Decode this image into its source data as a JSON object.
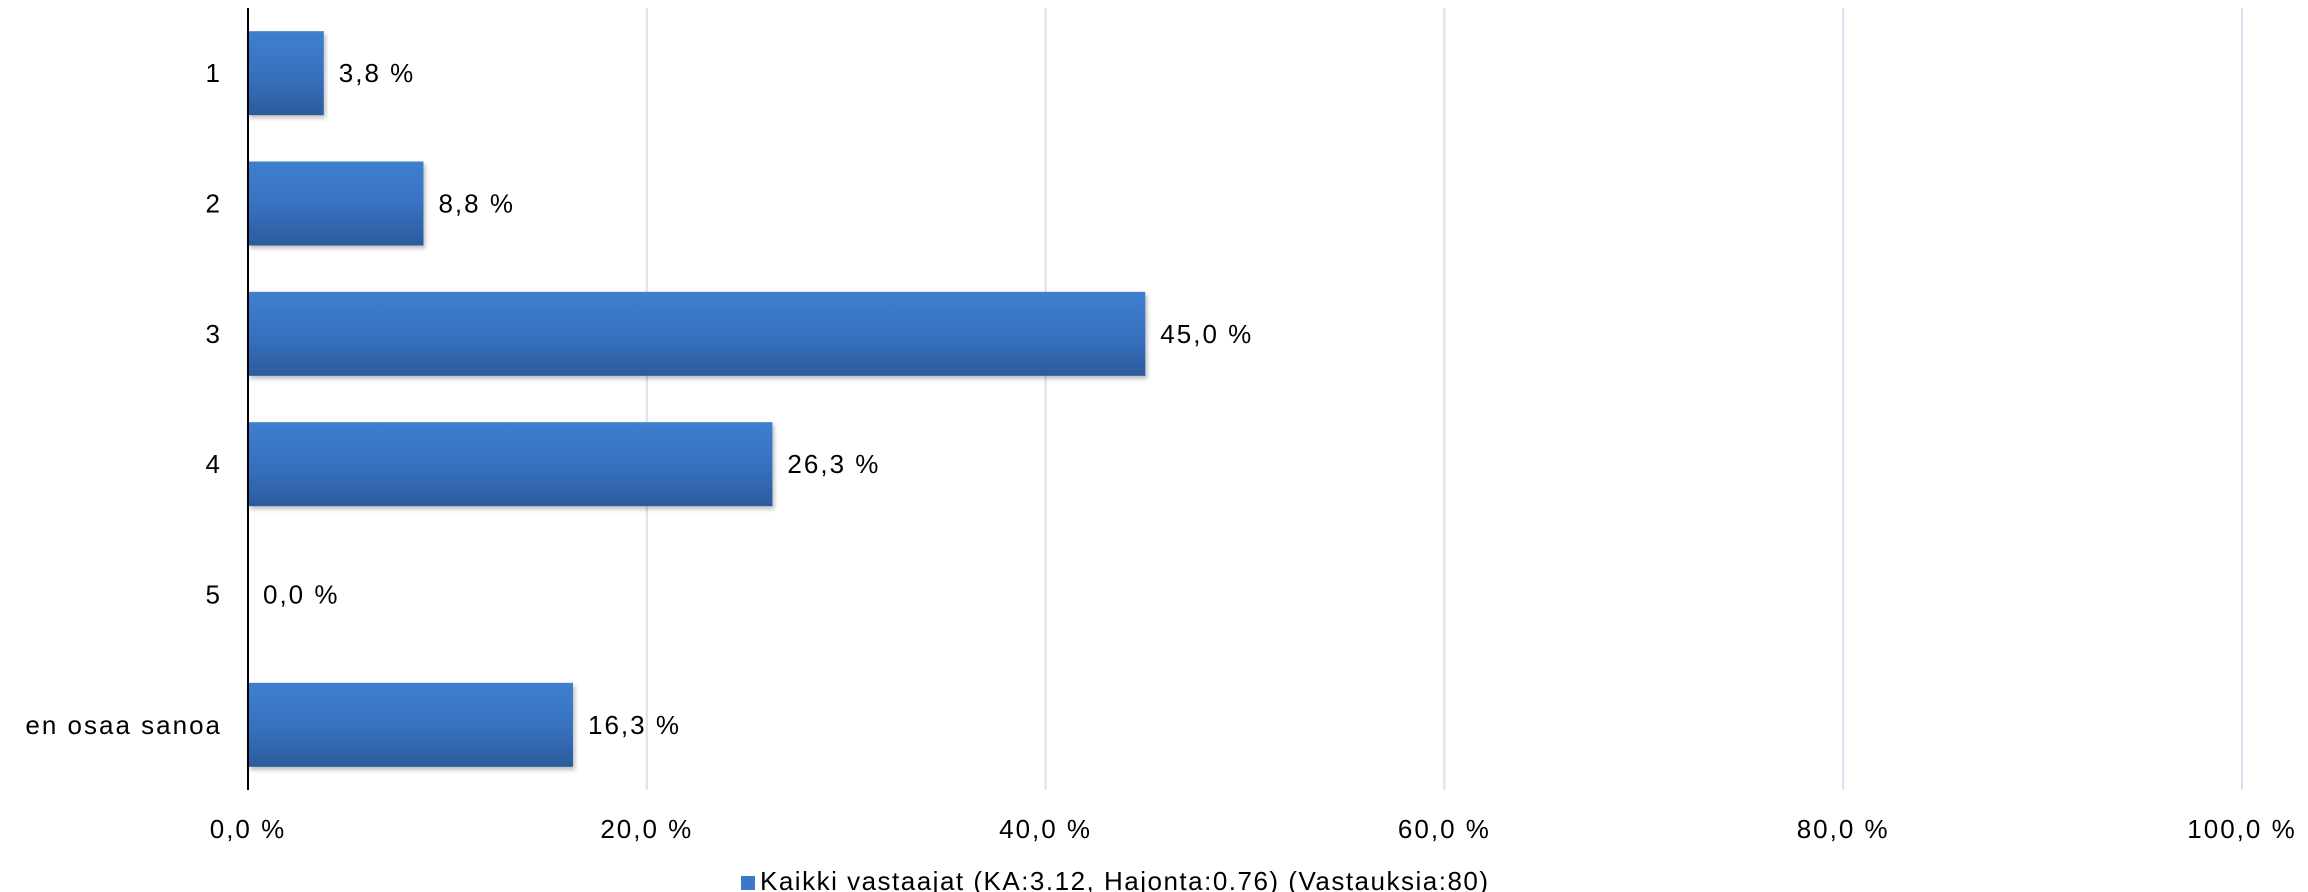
{
  "chart_data": {
    "type": "bar",
    "orientation": "horizontal",
    "categories": [
      "1",
      "2",
      "3",
      "4",
      "5",
      "en osaa sanoa"
    ],
    "series": [
      {
        "name": "Kaikki vastaajat (KA:3.12, Hajonta:0.76) (Vastauksia:80)",
        "values": [
          3.8,
          8.8,
          45.0,
          26.3,
          0.0,
          16.3
        ],
        "value_labels": [
          "3,8 %",
          "8,8 %",
          "45,0 %",
          "26,3 %",
          "0,0 %",
          "16,3 %"
        ],
        "color": "#3c78c8"
      }
    ],
    "xlim": [
      0,
      100
    ],
    "x_ticks": [
      0,
      20,
      40,
      60,
      80,
      100
    ],
    "x_tick_labels": [
      "0,0 %",
      "20,0 %",
      "40,0 %",
      "60,0 %",
      "80,0 %",
      "100,0 %"
    ],
    "title": "",
    "xlabel": "",
    "ylabel": "",
    "grid": true,
    "legend_position": "bottom",
    "colors": {
      "bar": "#3c78c8",
      "bar_dark": "#2c5fa5",
      "grid": "#d6e2ee",
      "axis": "#000000"
    }
  }
}
